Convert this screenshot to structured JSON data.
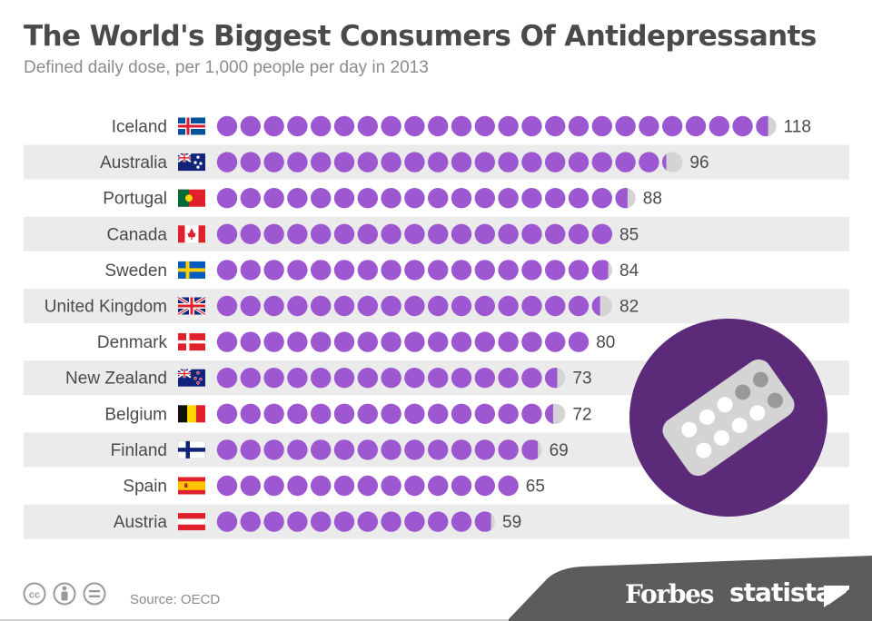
{
  "chart_data": {
    "type": "bar",
    "title": "The World's Biggest Consumers Of Antidepressants",
    "subtitle": "Defined daily dose, per 1,000 people per day in 2013",
    "unit_per_dot": 5,
    "categories": [
      "Iceland",
      "Australia",
      "Portugal",
      "Canada",
      "Sweden",
      "United Kingdom",
      "Denmark",
      "New Zealand",
      "Belgium",
      "Finland",
      "Spain",
      "Austria"
    ],
    "values": [
      118,
      96,
      88,
      85,
      84,
      82,
      80,
      73,
      72,
      69,
      65,
      59
    ],
    "source": "Source: OECD"
  },
  "branding": {
    "forbes": "Forbes",
    "statista": "statista"
  },
  "colors": {
    "dot": "#9c57d1",
    "dot_remainder": "#d4d4d4",
    "row_stripe": "#ebebeb",
    "circle_bg": "#5b2a78",
    "footer_band": "#5c5c5c",
    "title": "#4a4a4a",
    "subtitle": "#8c8c8c"
  },
  "icons": {
    "flags": [
      "iceland-flag-icon",
      "australia-flag-icon",
      "portugal-flag-icon",
      "canada-flag-icon",
      "sweden-flag-icon",
      "united-kingdom-flag-icon",
      "denmark-flag-icon",
      "new-zealand-flag-icon",
      "belgium-flag-icon",
      "finland-flag-icon",
      "spain-flag-icon",
      "austria-flag-icon"
    ],
    "graphic": "pill-blister-icon",
    "license": [
      "cc-icon",
      "attribution-icon",
      "no-derivatives-icon"
    ]
  }
}
